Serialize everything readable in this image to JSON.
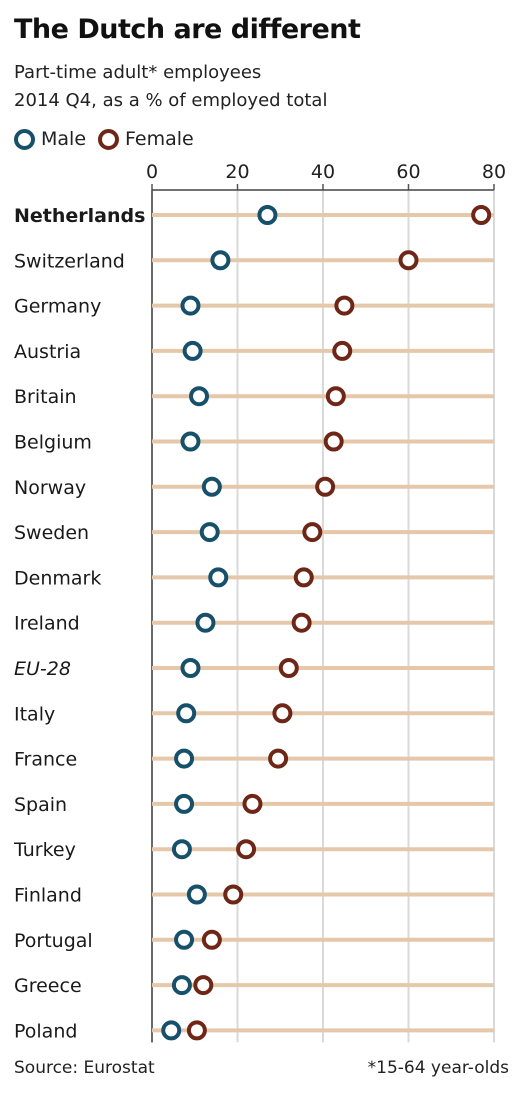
{
  "title": "The Dutch are different",
  "subtitle_line1": "Part-time adult* employees",
  "subtitle_line2": "2014 Q4, as a % of employed total",
  "source": "Source: Eurostat",
  "footnote": "*15-64 year-olds",
  "colors": {
    "male": "#17506a",
    "female": "#6e2716",
    "bar": "#e5c8aa"
  },
  "chart_data": {
    "type": "scatter",
    "xlim": [
      0,
      80
    ],
    "xticks": [
      0,
      20,
      40,
      60,
      80
    ],
    "legend_placement": "top-left",
    "grid": false,
    "series": [
      {
        "name": "Male",
        "key": "male"
      },
      {
        "name": "Female",
        "key": "female"
      }
    ],
    "categories": [
      {
        "label": "Netherlands",
        "male": 27,
        "female": 77,
        "bold": true
      },
      {
        "label": "Switzerland",
        "male": 16,
        "female": 60
      },
      {
        "label": "Germany",
        "male": 9,
        "female": 45
      },
      {
        "label": "Austria",
        "male": 9.5,
        "female": 44.5
      },
      {
        "label": "Britain",
        "male": 11,
        "female": 43
      },
      {
        "label": "Belgium",
        "male": 9,
        "female": 42.5
      },
      {
        "label": "Norway",
        "male": 14,
        "female": 40.5
      },
      {
        "label": "Sweden",
        "male": 13.5,
        "female": 37.5
      },
      {
        "label": "Denmark",
        "male": 15.5,
        "female": 35.5
      },
      {
        "label": "Ireland",
        "male": 12.5,
        "female": 35
      },
      {
        "label": "EU-28",
        "male": 9,
        "female": 32,
        "italic": true
      },
      {
        "label": "Italy",
        "male": 8,
        "female": 30.5
      },
      {
        "label": "France",
        "male": 7.5,
        "female": 29.5
      },
      {
        "label": "Spain",
        "male": 7.5,
        "female": 23.5
      },
      {
        "label": "Turkey",
        "male": 7,
        "female": 22
      },
      {
        "label": "Finland",
        "male": 10.5,
        "female": 19
      },
      {
        "label": "Portugal",
        "male": 7.5,
        "female": 14
      },
      {
        "label": "Greece",
        "male": 7,
        "female": 12
      },
      {
        "label": "Poland",
        "male": 4.5,
        "female": 10.5
      }
    ]
  }
}
